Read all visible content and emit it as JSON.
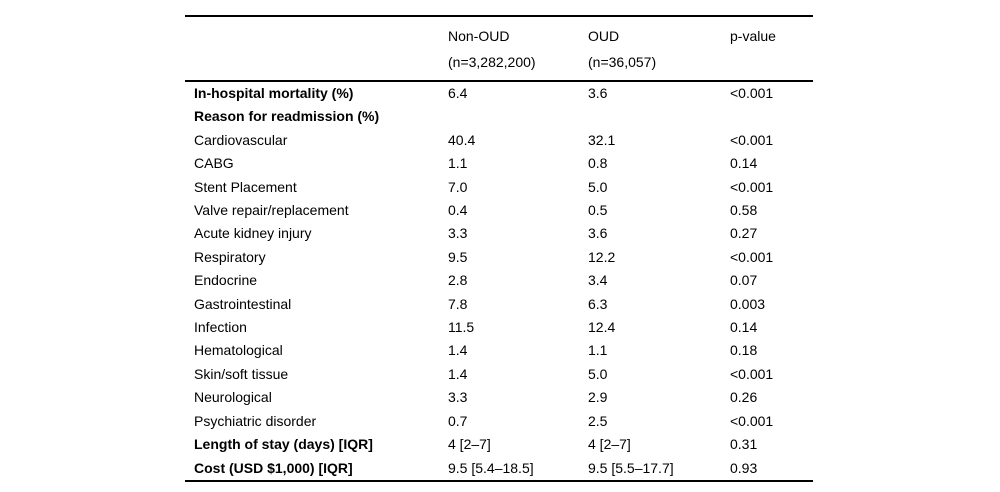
{
  "colors": {
    "text": "#000000",
    "background": "#ffffff",
    "rule": "#000000"
  },
  "table": {
    "header": {
      "label_col": "",
      "col2_line1": "Non-OUD",
      "col2_line2": "(n=3,282,200)",
      "col3_line1": "OUD",
      "col3_line2": "(n=36,057)",
      "col4_line1": "p-value",
      "col4_line2": ""
    },
    "rows": [
      {
        "label": "In-hospital mortality (%)",
        "bold": true,
        "non_oud": "6.4",
        "oud": "3.6",
        "p": "<0.001"
      },
      {
        "label": "Reason for readmission (%)",
        "bold": true,
        "non_oud": "",
        "oud": "",
        "p": ""
      },
      {
        "label": "Cardiovascular",
        "bold": false,
        "non_oud": "40.4",
        "oud": "32.1",
        "p": "<0.001"
      },
      {
        "label": "CABG",
        "bold": false,
        "non_oud": "1.1",
        "oud": "0.8",
        "p": "0.14"
      },
      {
        "label": "Stent Placement",
        "bold": false,
        "non_oud": "7.0",
        "oud": "5.0",
        "p": "<0.001"
      },
      {
        "label": "Valve repair/replacement",
        "bold": false,
        "non_oud": "0.4",
        "oud": "0.5",
        "p": "0.58"
      },
      {
        "label": "Acute kidney injury",
        "bold": false,
        "non_oud": "3.3",
        "oud": "3.6",
        "p": "0.27"
      },
      {
        "label": "Respiratory",
        "bold": false,
        "non_oud": "9.5",
        "oud": "12.2",
        "p": "<0.001"
      },
      {
        "label": "Endocrine",
        "bold": false,
        "non_oud": "2.8",
        "oud": "3.4",
        "p": "0.07"
      },
      {
        "label": "Gastrointestinal",
        "bold": false,
        "non_oud": "7.8",
        "oud": "6.3",
        "p": "0.003"
      },
      {
        "label": "Infection",
        "bold": false,
        "non_oud": "11.5",
        "oud": "12.4",
        "p": "0.14"
      },
      {
        "label": "Hematological",
        "bold": false,
        "non_oud": "1.4",
        "oud": "1.1",
        "p": "0.18"
      },
      {
        "label": "Skin/soft tissue",
        "bold": false,
        "non_oud": "1.4",
        "oud": "5.0",
        "p": "<0.001"
      },
      {
        "label": "Neurological",
        "bold": false,
        "non_oud": "3.3",
        "oud": "2.9",
        "p": "0.26"
      },
      {
        "label": "Psychiatric disorder",
        "bold": false,
        "non_oud": "0.7",
        "oud": "2.5",
        "p": "<0.001"
      },
      {
        "label": "Length of stay (days) [IQR]",
        "bold": true,
        "non_oud": "4 [2–7]",
        "oud": "4 [2–7]",
        "p": "0.31"
      },
      {
        "label": "Cost (USD $1,000) [IQR]",
        "bold": true,
        "non_oud": "9.5 [5.4–18.5]",
        "oud": "9.5 [5.5–17.7]",
        "p": "0.93"
      }
    ]
  }
}
